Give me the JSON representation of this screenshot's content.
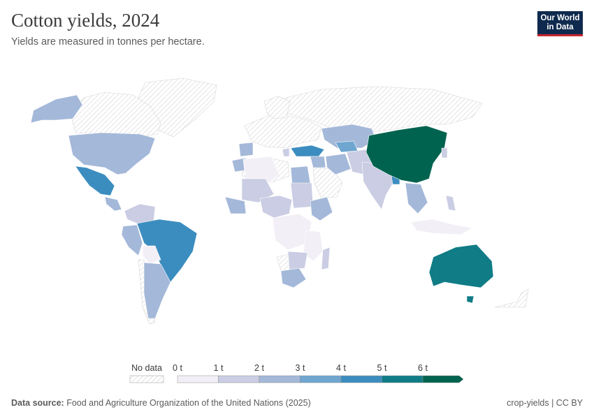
{
  "header": {
    "title": "Cotton yields, 2024",
    "subtitle": "Yields are measured in tonnes per hectare."
  },
  "logo": {
    "line1": "Our World",
    "line2": "in Data"
  },
  "legend": {
    "no_data_label": "No data",
    "ticks": [
      "0 t",
      "1 t",
      "2 t",
      "3 t",
      "4 t",
      "5 t",
      "6 t"
    ],
    "colors": [
      "#f3eff6",
      "#cacde3",
      "#a4b8d9",
      "#6ea6d0",
      "#3c8dbf",
      "#0f7c86",
      "#00634f"
    ]
  },
  "footer": {
    "source_label": "Data source:",
    "source_text": "Food and Agriculture Organization of the United Nations (2025)",
    "slug": "crop-yields | CC BY"
  },
  "map_data": {
    "regions": [
      {
        "name": "China",
        "band": 6
      },
      {
        "name": "Australia",
        "band": 5
      },
      {
        "name": "Brazil",
        "band": 4
      },
      {
        "name": "Mexico",
        "band": 4
      },
      {
        "name": "Turkey",
        "band": 4
      },
      {
        "name": "Bangladesh",
        "band": 4
      },
      {
        "name": "United States",
        "band": 2
      },
      {
        "name": "Uzbekistan",
        "band": 2
      },
      {
        "name": "Iran",
        "band": 2
      },
      {
        "name": "Egypt",
        "band": 2
      },
      {
        "name": "Argentina",
        "band": 2
      },
      {
        "name": "South Africa",
        "band": 2
      },
      {
        "name": "Ethiopia",
        "band": 2
      },
      {
        "name": "India",
        "band": 1
      },
      {
        "name": "Pakistan",
        "band": 1
      },
      {
        "name": "Mali",
        "band": 1
      },
      {
        "name": "Sudan",
        "band": 1
      },
      {
        "name": "Peru",
        "band": 2
      },
      {
        "name": "Mozambique",
        "band": 0
      },
      {
        "name": "Tanzania",
        "band": 0
      },
      {
        "name": "DR Congo",
        "band": 0
      }
    ]
  }
}
